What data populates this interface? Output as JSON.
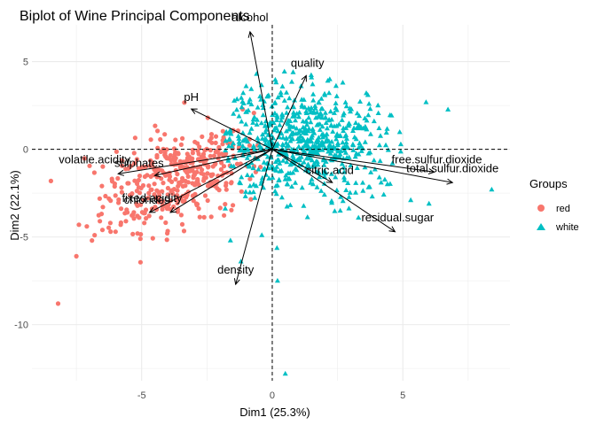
{
  "chart_data": {
    "type": "scatter",
    "title": "Biplot of Wine Principal Components",
    "xlabel": "Dim1 (25.3%)",
    "ylabel": "Dim2 (22.1%)",
    "xlim": [
      -9.2,
      9.1
    ],
    "ylim": [
      -13.2,
      7.1
    ],
    "x_ticks": [
      -5,
      0,
      5
    ],
    "y_ticks": [
      5,
      0,
      -5,
      -10
    ],
    "grid": true,
    "legend": {
      "title": "Groups",
      "position": "right",
      "entries": [
        "red",
        "white"
      ]
    },
    "colors": {
      "red": "#F8766D",
      "white": "#00BFC4",
      "arrow": "#000000",
      "grid": "#EBEBEB"
    },
    "series": [
      {
        "name": "red",
        "shape": "circle",
        "color": "#F8766D",
        "cloud": {
          "center": [
            -3.6,
            -1.6
          ],
          "spread": [
            1.4,
            1.3
          ],
          "count": 380
        },
        "points": [
          [
            -8.2,
            -8.8
          ],
          [
            -7.5,
            -6.1
          ],
          [
            -7.1,
            -4.4
          ],
          [
            -6.8,
            -4.9
          ],
          [
            -6.5,
            -4.6
          ],
          [
            -6.2,
            -4.2
          ],
          [
            -6.0,
            -4.7
          ],
          [
            -5.8,
            -4.3
          ],
          [
            -5.6,
            -4.1
          ],
          [
            -6.6,
            -4.1
          ],
          [
            -6.9,
            -5.2
          ],
          [
            -7.4,
            -4.3
          ],
          [
            -5.3,
            -3.6
          ],
          [
            -5.1,
            -3.9
          ],
          [
            -4.9,
            -4.2
          ],
          [
            -4.6,
            -3.4
          ]
        ]
      },
      {
        "name": "white",
        "shape": "triangle",
        "color": "#00BFC4",
        "cloud": {
          "center": [
            1.1,
            0.4
          ],
          "spread": [
            1.6,
            1.5
          ],
          "count": 650
        },
        "points": [
          [
            0.5,
            -12.8
          ],
          [
            8.4,
            -2.3
          ],
          [
            6.0,
            -3.1
          ],
          [
            5.3,
            -2.9
          ],
          [
            4.1,
            -1.6
          ],
          [
            3.6,
            3.2
          ],
          [
            2.7,
            3.8
          ],
          [
            2.2,
            4.0
          ],
          [
            -0.6,
            4.3
          ],
          [
            1.5,
            4.1
          ],
          [
            0.8,
            4.4
          ],
          [
            -1.0,
            3.6
          ],
          [
            3.3,
            -3.9
          ],
          [
            2.6,
            -3.5
          ],
          [
            4.6,
            -0.8
          ],
          [
            3.9,
            1.6
          ],
          [
            -1.2,
            -6.4
          ],
          [
            -0.4,
            -4.9
          ],
          [
            -1.6,
            -5.2
          ],
          [
            0.2,
            -7.5
          ]
        ]
      }
    ],
    "variables": [
      {
        "name": "alcohol",
        "x": -0.85,
        "y": 6.7,
        "label_x": -0.85,
        "label_y": 7.3
      },
      {
        "name": "quality",
        "x": 1.3,
        "y": 4.2,
        "label_x": 1.35,
        "label_y": 4.7
      },
      {
        "name": "pH",
        "x": -3.1,
        "y": 2.3,
        "label_x": -3.1,
        "label_y": 2.75
      },
      {
        "name": "volatile.acidity",
        "x": -5.9,
        "y": -1.4,
        "label_x": -6.8,
        "label_y": -0.8
      },
      {
        "name": "sulphates",
        "x": -4.5,
        "y": -1.5,
        "label_x": -5.1,
        "label_y": -1.0
      },
      {
        "name": "chlorides",
        "x": -4.7,
        "y": -3.6,
        "label_x": -4.8,
        "label_y": -3.1
      },
      {
        "name": "fixed.acidity",
        "x": -3.9,
        "y": -3.6,
        "label_x": -4.6,
        "label_y": -3.0
      },
      {
        "name": "density",
        "x": -1.4,
        "y": -7.7,
        "label_x": -1.4,
        "label_y": -7.1
      },
      {
        "name": "free.sulfur.dioxide",
        "x": 6.2,
        "y": -1.3,
        "label_x": 6.3,
        "label_y": -0.8
      },
      {
        "name": "total.sulfur.dioxide",
        "x": 6.9,
        "y": -1.9,
        "label_x": 6.9,
        "label_y": -1.3
      },
      {
        "name": "citric.acid",
        "x": 2.3,
        "y": -1.9,
        "label_x": 2.2,
        "label_y": -1.4
      },
      {
        "name": "residual.sugar",
        "x": 4.7,
        "y": -4.7,
        "label_x": 4.8,
        "label_y": -4.1
      }
    ]
  }
}
